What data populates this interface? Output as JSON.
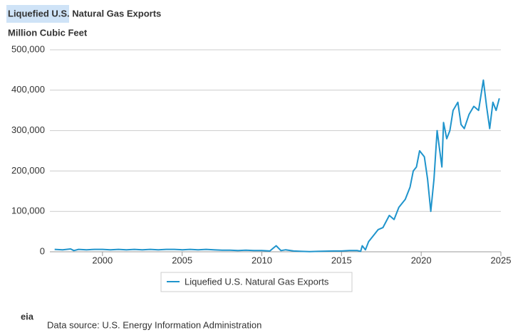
{
  "chart_data": {
    "type": "line",
    "title": "Liquefied U.S. Natural Gas Exports",
    "subtitle": "Million Cubic Feet",
    "xlim": [
      1996.7,
      2025
    ],
    "xticks": [
      2000,
      2005,
      2010,
      2015,
      2020,
      2025
    ],
    "ylim": [
      0,
      500000
    ],
    "yticks": [
      0,
      {
        "value": 100000,
        "label": "100,000"
      },
      {
        "value": 200000,
        "label": "200,000"
      },
      {
        "value": 300000,
        "label": "300,000"
      },
      {
        "value": 400000,
        "label": "400,000"
      },
      {
        "value": 500000,
        "label": "500,000"
      }
    ],
    "grid": true,
    "series": [
      {
        "name": "Liquefied U.S. Natural Gas Exports",
        "color": "#1f94cc",
        "x": [
          1997.0,
          1997.5,
          1998.0,
          1998.2,
          1998.5,
          1999.0,
          1999.5,
          2000.0,
          2000.5,
          2001.0,
          2001.5,
          2002.0,
          2002.5,
          2003.0,
          2003.5,
          2004.0,
          2004.5,
          2005.0,
          2005.5,
          2006.0,
          2006.5,
          2007.0,
          2007.5,
          2008.0,
          2008.5,
          2009.0,
          2009.5,
          2010.0,
          2010.5,
          2010.9,
          2011.2,
          2011.5,
          2012.0,
          2012.5,
          2013.0,
          2013.5,
          2014.0,
          2014.5,
          2015.0,
          2015.5,
          2016.0,
          2016.2,
          2016.3,
          2016.5,
          2016.7,
          2017.0,
          2017.3,
          2017.6,
          2018.0,
          2018.3,
          2018.6,
          2019.0,
          2019.3,
          2019.5,
          2019.7,
          2019.9,
          2020.2,
          2020.4,
          2020.6,
          2020.8,
          2021.0,
          2021.3,
          2021.4,
          2021.6,
          2021.8,
          2022.0,
          2022.3,
          2022.5,
          2022.7,
          2023.0,
          2023.3,
          2023.6,
          2023.9,
          2024.1,
          2024.3,
          2024.5,
          2024.7,
          2024.9
        ],
        "values": [
          6000,
          5000,
          7000,
          3000,
          6000,
          5000,
          6000,
          6000,
          5000,
          6000,
          5000,
          6000,
          5000,
          6000,
          5000,
          6000,
          6000,
          5000,
          6000,
          5000,
          6000,
          5000,
          4000,
          4000,
          3000,
          4000,
          3000,
          3000,
          2000,
          15000,
          3000,
          5000,
          2000,
          1000,
          500,
          1000,
          1500,
          2000,
          2000,
          3000,
          3000,
          1000,
          15000,
          5000,
          25000,
          40000,
          55000,
          60000,
          90000,
          80000,
          110000,
          130000,
          160000,
          200000,
          210000,
          250000,
          235000,
          180000,
          100000,
          180000,
          300000,
          210000,
          320000,
          280000,
          300000,
          350000,
          370000,
          315000,
          305000,
          340000,
          360000,
          350000,
          425000,
          360000,
          305000,
          370000,
          350000,
          380000
        ]
      }
    ]
  },
  "footer": {
    "logo": "eia",
    "source": "Data source: U.S. Energy Information Administration"
  }
}
